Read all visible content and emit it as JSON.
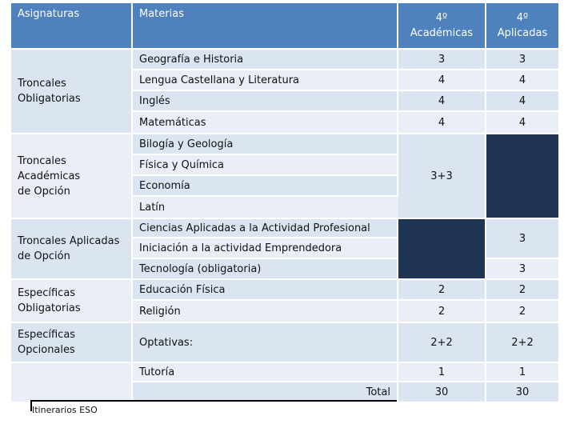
{
  "header": {
    "asignaturas": "Asignaturas",
    "materias": "Materias",
    "academicas": "4º\nAcadémicas",
    "aplicadas": "4º\nAplicadas"
  },
  "groups": {
    "troncales_obligatorias": "Troncales\nObligatorias",
    "troncales_academicas": "Troncales\nAcadémicas\nde Opción",
    "troncales_aplicadas": "Troncales Aplicadas\nde Opción",
    "especificas_obligatorias": "Específicas\nObligatorias",
    "especificas_opcionales": "Específicas\nOpcionales"
  },
  "rows": {
    "geografia": {
      "materia": "Geografía e Historia",
      "academicas": "3",
      "aplicadas": "3"
    },
    "lengua": {
      "materia": "Lengua Castellana y Literatura",
      "academicas": "4",
      "aplicadas": "4"
    },
    "ingles": {
      "materia": "Inglés",
      "academicas": "4",
      "aplicadas": "4"
    },
    "matematicas": {
      "materia": "Matemáticas",
      "academicas": "4",
      "aplicadas": "4"
    },
    "biologia": {
      "materia": "Bilogía y Geología"
    },
    "fisica": {
      "materia": "Física y Química"
    },
    "economia": {
      "materia": "Economía"
    },
    "latin": {
      "materia": "Latín"
    },
    "academicas_opcion_value": "3+3",
    "ciencias": {
      "materia": "Ciencias Aplicadas a la Actividad Profesional"
    },
    "iniciacion": {
      "materia": "Iniciación a la actividad Emprendedora"
    },
    "aplicadas_opcion_value": "3",
    "tecnologia": {
      "materia": "Tecnología (obligatoria)",
      "aplicadas": "3"
    },
    "educacion": {
      "materia": "Educación Física",
      "academicas": "2",
      "aplicadas": "2"
    },
    "religion": {
      "materia": "Religión",
      "academicas": "2",
      "aplicadas": "2"
    },
    "optativas": {
      "materia": "Optativas:",
      "academicas": "2+2",
      "aplicadas": "2+2"
    },
    "tutoria": {
      "materia": "Tutoría",
      "academicas": "1",
      "aplicadas": "1"
    },
    "total": {
      "materia": "Total",
      "academicas": "30",
      "aplicadas": "30"
    }
  },
  "footer": "Itinerarios ESO"
}
